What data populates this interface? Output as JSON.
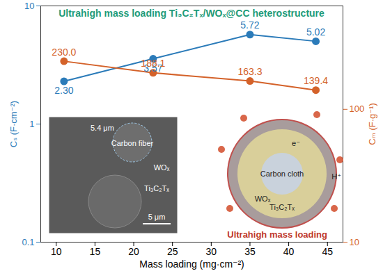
{
  "chart_data": {
    "type": "line",
    "title": "Ultrahigh mass loading Ti₃C₂Tₓ/WOₓ@CC heterostructure",
    "x_label": "Mass loading (mg·cm⁻²)",
    "y_label": "Cₛ (F·cm⁻²)",
    "y2_label": "Cₘ (F·g⁻¹)",
    "x": [
      11,
      22.5,
      35,
      43.5
    ],
    "series": [
      {
        "color": "#2b7bb9",
        "marker": "circle",
        "values": [
          2.3,
          3.57,
          5.72,
          5.02
        ],
        "value_labels": [
          "2.30",
          "3.57",
          "5.72",
          "5.02"
        ]
      },
      {
        "color": "#d4622a",
        "marker": "circle",
        "axis": "y2",
        "values": [
          230.0,
          188.1,
          163.3,
          139.4
        ],
        "value_labels": [
          "230.0",
          "188.1",
          "163.3",
          "139.4"
        ]
      }
    ],
    "xlim": [
      8,
      47
    ],
    "xticks": [
      10,
      15,
      20,
      25,
      30,
      35,
      40,
      45
    ],
    "ylim": [
      0.1,
      10
    ],
    "yticks": [
      0.1,
      1,
      10
    ],
    "y2lim": [
      10,
      600
    ],
    "y2ticks": [
      10,
      100
    ],
    "log": "y",
    "data_labels": true,
    "annotations": [
      "5.4 μm",
      "Carbon fiber",
      "WOₓ",
      "Ti₃C₂Tₓ",
      "5 μm",
      "Carbon cloth",
      "Ultrahigh mass loading",
      "e⁻",
      "H⁺"
    ]
  }
}
